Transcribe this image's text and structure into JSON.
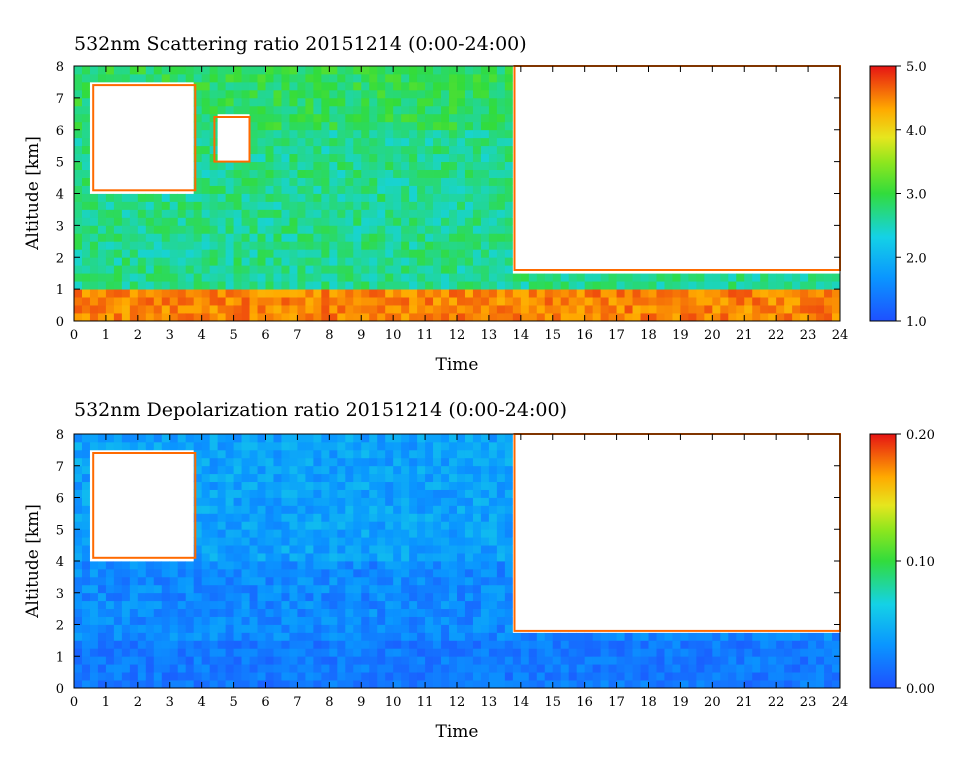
{
  "chart_data": [
    {
      "type": "heatmap",
      "title": "532nm Scattering ratio  20151214 (0:00-24:00)",
      "xlabel": "Time",
      "ylabel": "Altitude [km]",
      "xlim": [
        0,
        24
      ],
      "ylim": [
        0,
        8
      ],
      "x_ticks": [
        "0",
        "1",
        "2",
        "3",
        "4",
        "5",
        "6",
        "7",
        "8",
        "9",
        "10",
        "11",
        "12",
        "13",
        "14",
        "15",
        "16",
        "17",
        "18",
        "19",
        "20",
        "21",
        "22",
        "23",
        "24"
      ],
      "y_ticks": [
        "0",
        "1",
        "2",
        "3",
        "4",
        "5",
        "6",
        "7",
        "8"
      ],
      "colorbar": {
        "min": 1.0,
        "max": 5.0,
        "ticks": [
          "1.0",
          "2.0",
          "3.0",
          "4.0",
          "5.0"
        ]
      },
      "colors": [
        "#1e50ff",
        "#14c8ff",
        "#32dc3c",
        "#c8e61e",
        "#ffb400",
        "#ff5000",
        "#e61414"
      ],
      "cloud_regions": [
        {
          "t_start": 0.6,
          "t_end": 3.8,
          "alt_bottom": 4.1,
          "alt_top": 7.4
        },
        {
          "t_start": 4.4,
          "t_end": 5.5,
          "alt_bottom": 5.0,
          "alt_top": 6.4
        },
        {
          "t_start": 13.8,
          "t_end": 24.0,
          "alt_bottom": 1.6,
          "alt_top": 8.0
        }
      ],
      "boundary_layer": {
        "alt_top": 1.0,
        "value": 4.5
      }
    },
    {
      "type": "heatmap",
      "title": "532nm Depolarization ratio  20151214 (0:00-24:00)",
      "xlabel": "Time",
      "ylabel": "Altitude [km]",
      "xlim": [
        0,
        24
      ],
      "ylim": [
        0,
        8
      ],
      "x_ticks": [
        "0",
        "1",
        "2",
        "3",
        "4",
        "5",
        "6",
        "7",
        "8",
        "9",
        "10",
        "11",
        "12",
        "13",
        "14",
        "15",
        "16",
        "17",
        "18",
        "19",
        "20",
        "21",
        "22",
        "23",
        "24"
      ],
      "y_ticks": [
        "0",
        "1",
        "2",
        "3",
        "4",
        "5",
        "6",
        "7",
        "8"
      ],
      "colorbar": {
        "min": 0.0,
        "max": 0.2,
        "ticks": [
          "0.00",
          "0.10",
          "0.20"
        ]
      },
      "colors": [
        "#1e50ff",
        "#14c8ff",
        "#32dc3c",
        "#c8e61e",
        "#ffb400",
        "#ff5000",
        "#e61414"
      ],
      "cloud_regions": [
        {
          "t_start": 0.6,
          "t_end": 3.8,
          "alt_bottom": 4.1,
          "alt_top": 7.4
        },
        {
          "t_start": 13.8,
          "t_end": 24.0,
          "alt_bottom": 1.8,
          "alt_top": 8.0
        }
      ],
      "boundary_layer": {
        "alt_top": 1.5,
        "value": 0.02
      }
    }
  ]
}
